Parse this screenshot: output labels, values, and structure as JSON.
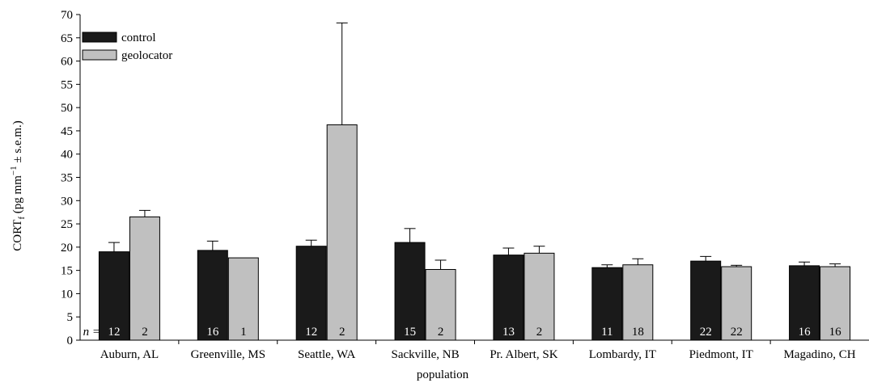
{
  "chart_data": {
    "type": "bar",
    "categories": [
      "Auburn, AL",
      "Greenville, MS",
      "Seattle, WA",
      "Sackville, NB",
      "Pr. Albert, SK",
      "Lombardy, IT",
      "Piedmont, IT",
      "Magadino, CH"
    ],
    "series": [
      {
        "name": "control",
        "color": "#1a1a1a",
        "values": [
          19.0,
          19.3,
          20.2,
          21.0,
          18.3,
          15.6,
          17.0,
          16.0
        ],
        "error": [
          2.0,
          2.0,
          1.3,
          3.0,
          1.5,
          0.6,
          1.0,
          0.8
        ],
        "n": [
          "12",
          "16",
          "12",
          "15",
          "13",
          "11",
          "22",
          "16"
        ]
      },
      {
        "name": "geolocator",
        "color": "#c0c0c0",
        "values": [
          26.5,
          17.7,
          46.3,
          15.2,
          18.7,
          16.2,
          15.8,
          15.8
        ],
        "error": [
          1.4,
          0,
          21.9,
          2.0,
          1.5,
          1.3,
          0.3,
          0.6
        ],
        "n": [
          "2",
          "1",
          "2",
          "2",
          "2",
          "18",
          "22",
          "16"
        ]
      }
    ],
    "ylim": [
      0,
      70
    ],
    "yticks": [
      0,
      5,
      10,
      15,
      20,
      25,
      30,
      35,
      40,
      45,
      50,
      55,
      60,
      65,
      70
    ],
    "xlabel": "population",
    "ylabel": {
      "main": "CORT",
      "sub": "f",
      "rest": " (pg mm",
      "sup": "−1",
      "tail": " ± s.e.m.)"
    },
    "n_prefix": "n =",
    "legend_position": "top-left",
    "grid": false
  }
}
